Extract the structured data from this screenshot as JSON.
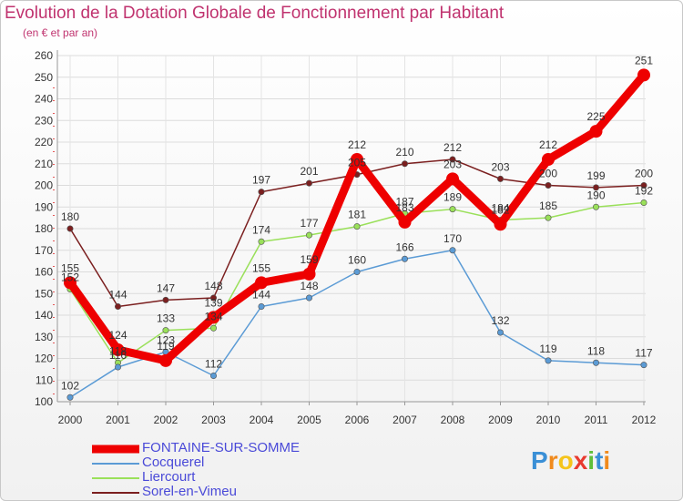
{
  "header": {
    "title": "Evolution de la Dotation Globale de Fonctionnement par Habitant",
    "subtitle": "(en € et par an)"
  },
  "chart_data": {
    "type": "line",
    "title": "Evolution de la Dotation Globale de Fonctionnement par Habitant",
    "subtitle": "(en € et par an)",
    "xlabel": "",
    "ylabel": "",
    "ylim": [
      100,
      260
    ],
    "ytick_step": 10,
    "grid": true,
    "categories": [
      "2000",
      "2001",
      "2002",
      "2003",
      "2004",
      "2005",
      "2006",
      "2007",
      "2008",
      "2009",
      "2010",
      "2011",
      "2012"
    ],
    "series": [
      {
        "name": "Sorel-en-Vimeu",
        "color": "#7b1f1f",
        "values": [
          180,
          144,
          147,
          148,
          197,
          201,
          205,
          210,
          212,
          203,
          200,
          199,
          200
        ],
        "labels": [
          "180",
          "144",
          "147",
          "148",
          "197",
          "201",
          "205",
          "210",
          "212",
          "203",
          "200",
          "199",
          "200"
        ]
      },
      {
        "name": "Liercourt",
        "color": "#9ae05a",
        "values": [
          152,
          118,
          133,
          134,
          174,
          177,
          181,
          187,
          189,
          184,
          185,
          190,
          192
        ],
        "labels": [
          "152",
          "118",
          "133",
          "134",
          "174",
          "177",
          "181",
          "187",
          "189",
          "184",
          "185",
          "190",
          "192"
        ]
      },
      {
        "name": "Cocquerel",
        "color": "#5b9bd5",
        "values": [
          102,
          116,
          123,
          112,
          144,
          148,
          160,
          166,
          170,
          132,
          119,
          118,
          117
        ],
        "labels": [
          "102",
          "116",
          "123",
          "112",
          "144",
          "148",
          "160",
          "166",
          "170",
          "132",
          "119",
          "118",
          "117"
        ]
      },
      {
        "name": "FONTAINE-SUR-SOMME",
        "color": "#ee0000",
        "values": [
          155,
          124,
          119,
          139,
          155,
          159,
          212,
          183,
          203,
          182,
          212,
          225,
          251
        ],
        "labels": [
          "155",
          "124",
          "119",
          "139",
          "155",
          "159",
          "212",
          "183",
          "203",
          "182",
          "212",
          "225",
          "251"
        ]
      }
    ],
    "legend": {
      "position": "bottom-left",
      "items": [
        "FONTAINE-SUR-SOMME",
        "Cocquerel",
        "Liercourt",
        "Sorel-en-Vimeu"
      ]
    }
  },
  "legend_items": [
    {
      "label": "FONTAINE-SUR-SOMME",
      "color": "#ee0000",
      "weight": "thick"
    },
    {
      "label": "Cocquerel",
      "color": "#5b9bd5",
      "weight": "thin"
    },
    {
      "label": "Liercourt",
      "color": "#9ae05a",
      "weight": "thin"
    },
    {
      "label": "Sorel-en-Vimeu",
      "color": "#7b1f1f",
      "weight": "thin"
    }
  ],
  "logo": {
    "text": "Proxiti",
    "letters": [
      "P",
      "r",
      "o",
      "x",
      "i",
      "t",
      "i"
    ],
    "colors": [
      "#3a8fd6",
      "#f08a1c",
      "#f5c41b",
      "#e83a2f",
      "#5fbf3a",
      "#3a8fd6",
      "#f08a1c"
    ]
  }
}
